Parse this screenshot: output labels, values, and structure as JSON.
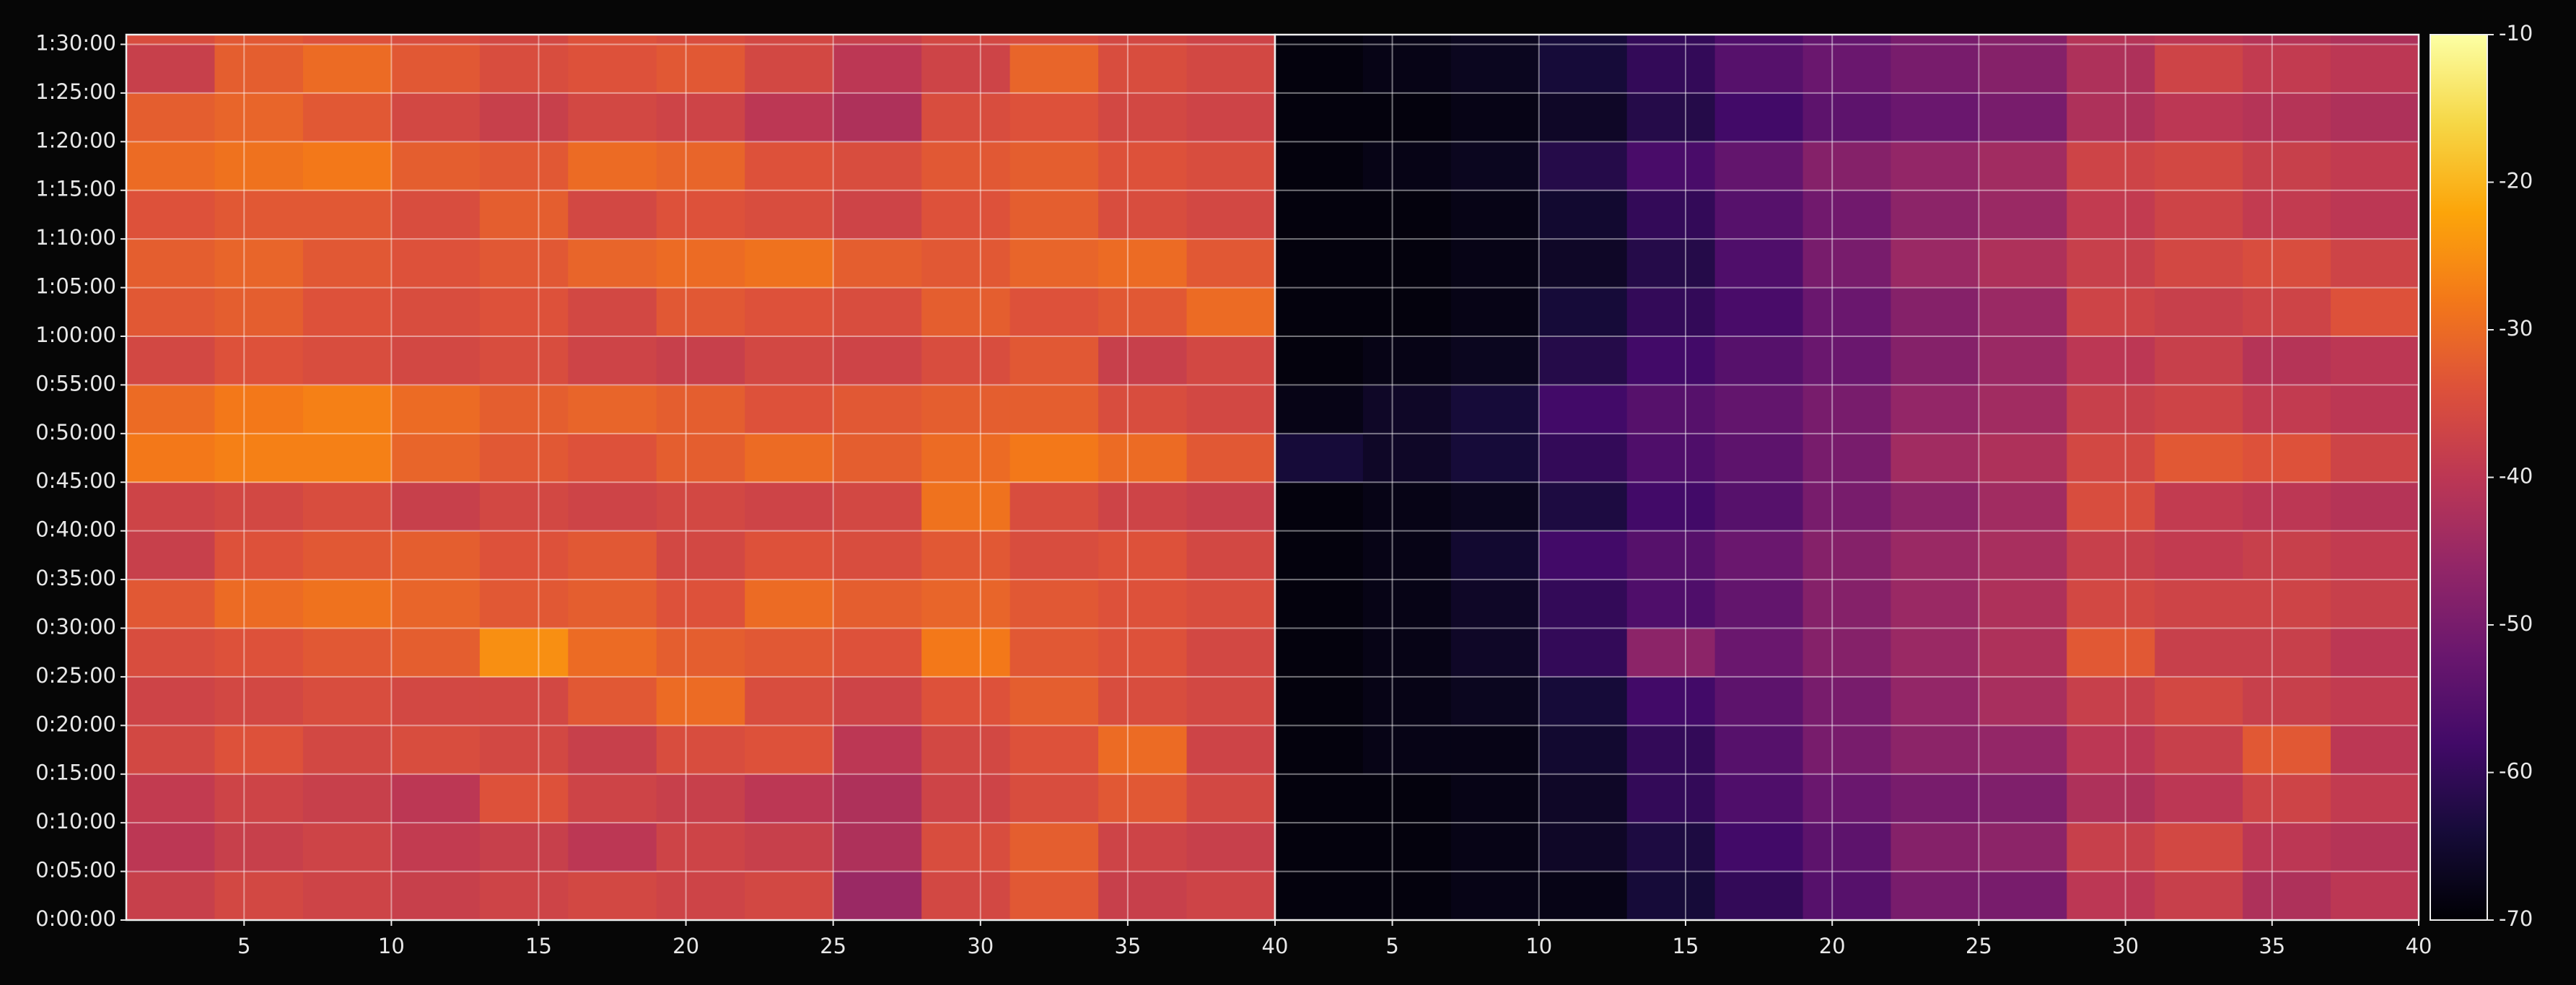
{
  "chart_data": [
    {
      "type": "heatmap",
      "colormap": "inferno",
      "clim": [
        -70,
        -10
      ],
      "grid": true,
      "xbins": [
        1,
        4,
        7,
        10,
        13,
        16,
        19,
        22,
        25,
        28,
        31,
        34,
        37,
        40
      ],
      "ybins": [
        0,
        300,
        600,
        900,
        1200,
        1500,
        1800,
        2100,
        2400,
        2700,
        3000,
        3300,
        3600,
        3900,
        4200,
        4500,
        4800,
        5100,
        5400,
        5460
      ],
      "xlim": [
        1,
        40
      ],
      "xticks": [
        5,
        10,
        15,
        20,
        25,
        30,
        35,
        40
      ],
      "ylim": [
        0,
        5460
      ],
      "yticks": [
        {
          "value": 0,
          "label": "0:00:00"
        },
        {
          "value": 300,
          "label": "0:05:00"
        },
        {
          "value": 600,
          "label": "0:10:00"
        },
        {
          "value": 900,
          "label": "0:15:00"
        },
        {
          "value": 1200,
          "label": "0:20:00"
        },
        {
          "value": 1500,
          "label": "0:25:00"
        },
        {
          "value": 1800,
          "label": "0:30:00"
        },
        {
          "value": 2100,
          "label": "0:35:00"
        },
        {
          "value": 2400,
          "label": "0:40:00"
        },
        {
          "value": 2700,
          "label": "0:45:00"
        },
        {
          "value": 3000,
          "label": "0:50:00"
        },
        {
          "value": 3300,
          "label": "0:55:00"
        },
        {
          "value": 3600,
          "label": "1:00:00"
        },
        {
          "value": 3900,
          "label": "1:05:00"
        },
        {
          "value": 4200,
          "label": "1:10:00"
        },
        {
          "value": 4500,
          "label": "1:15:00"
        },
        {
          "value": 4800,
          "label": "1:20:00"
        },
        {
          "value": 5100,
          "label": "1:25:00"
        },
        {
          "value": 5400,
          "label": "1:30:00"
        }
      ],
      "values": [
        [
          -38,
          -36,
          -37,
          -38,
          -37,
          -36,
          -37,
          -36,
          -45,
          -36,
          -33,
          -38,
          -37
        ],
        [
          -40,
          -38,
          -37,
          -39,
          -38,
          -40,
          -37,
          -38,
          -42,
          -35,
          -32,
          -37,
          -38
        ],
        [
          -39,
          -37,
          -38,
          -40,
          -34,
          -37,
          -38,
          -40,
          -42,
          -37,
          -35,
          -33,
          -36
        ],
        [
          -36,
          -34,
          -36,
          -35,
          -36,
          -38,
          -35,
          -34,
          -40,
          -36,
          -34,
          -30,
          -37
        ],
        [
          -37,
          -36,
          -35,
          -36,
          -36,
          -33,
          -30,
          -35,
          -37,
          -34,
          -32,
          -35,
          -36
        ],
        [
          -35,
          -34,
          -33,
          -32,
          -25,
          -30,
          -32,
          -33,
          -34,
          -28,
          -33,
          -34,
          -36
        ],
        [
          -33,
          -30,
          -29,
          -31,
          -33,
          -32,
          -34,
          -30,
          -32,
          -31,
          -33,
          -34,
          -35
        ],
        [
          -38,
          -34,
          -33,
          -32,
          -34,
          -33,
          -36,
          -34,
          -35,
          -33,
          -35,
          -34,
          -36
        ],
        [
          -37,
          -36,
          -35,
          -38,
          -36,
          -37,
          -36,
          -37,
          -36,
          -29,
          -35,
          -37,
          -38
        ],
        [
          -28,
          -27,
          -27,
          -31,
          -33,
          -34,
          -32,
          -30,
          -32,
          -30,
          -28,
          -30,
          -33
        ],
        [
          -30,
          -28,
          -27,
          -30,
          -32,
          -31,
          -32,
          -34,
          -33,
          -32,
          -32,
          -35,
          -36
        ],
        [
          -36,
          -34,
          -35,
          -36,
          -35,
          -37,
          -38,
          -36,
          -37,
          -35,
          -33,
          -38,
          -36
        ],
        [
          -33,
          -32,
          -34,
          -35,
          -34,
          -36,
          -33,
          -34,
          -35,
          -32,
          -34,
          -33,
          -30
        ],
        [
          -32,
          -31,
          -33,
          -34,
          -33,
          -31,
          -30,
          -29,
          -32,
          -33,
          -31,
          -30,
          -33
        ],
        [
          -34,
          -33,
          -33,
          -35,
          -32,
          -36,
          -34,
          -35,
          -37,
          -34,
          -32,
          -35,
          -36
        ],
        [
          -30,
          -29,
          -28,
          -32,
          -33,
          -30,
          -31,
          -34,
          -35,
          -33,
          -32,
          -34,
          -35
        ],
        [
          -32,
          -31,
          -33,
          -36,
          -38,
          -36,
          -37,
          -40,
          -42,
          -35,
          -34,
          -36,
          -37
        ],
        [
          -38,
          -32,
          -30,
          -33,
          -35,
          -34,
          -33,
          -36,
          -40,
          -37,
          -31,
          -35,
          -36
        ],
        [
          -35,
          -33,
          -34,
          -35,
          -36,
          -34,
          -35,
          -36,
          -38,
          -36,
          -35,
          -36,
          -37
        ]
      ]
    },
    {
      "type": "heatmap",
      "colormap": "inferno",
      "clim": [
        -70,
        -10
      ],
      "grid": true,
      "xbins": [
        1,
        4,
        7,
        10,
        13,
        16,
        19,
        22,
        25,
        28,
        31,
        34,
        37,
        40
      ],
      "ybins": [
        0,
        300,
        600,
        900,
        1200,
        1500,
        1800,
        2100,
        2400,
        2700,
        3000,
        3300,
        3600,
        3900,
        4200,
        4500,
        4800,
        5100,
        5400,
        5460
      ],
      "xlim": [
        1,
        40
      ],
      "xticks": [
        5,
        10,
        15,
        20,
        25,
        30,
        35,
        40
      ],
      "ylim": [
        0,
        5460
      ],
      "values": [
        [
          -69,
          -69,
          -68,
          -68,
          -64,
          -60,
          -55,
          -50,
          -50,
          -40,
          -38,
          -42,
          -40
        ],
        [
          -69,
          -69,
          -68,
          -66,
          -63,
          -58,
          -54,
          -48,
          -47,
          -38,
          -36,
          -40,
          -41
        ],
        [
          -69,
          -69,
          -68,
          -66,
          -60,
          -56,
          -52,
          -50,
          -49,
          -42,
          -40,
          -37,
          -39
        ],
        [
          -69,
          -68,
          -68,
          -65,
          -60,
          -55,
          -50,
          -47,
          -46,
          -40,
          -38,
          -33,
          -40
        ],
        [
          -69,
          -68,
          -67,
          -64,
          -58,
          -54,
          -50,
          -46,
          -43,
          -38,
          -36,
          -38,
          -39
        ],
        [
          -69,
          -68,
          -66,
          -60,
          -47,
          -52,
          -48,
          -45,
          -42,
          -33,
          -38,
          -38,
          -40
        ],
        [
          -69,
          -68,
          -66,
          -60,
          -56,
          -53,
          -48,
          -45,
          -42,
          -36,
          -37,
          -37,
          -38
        ],
        [
          -69,
          -68,
          -65,
          -58,
          -55,
          -52,
          -48,
          -45,
          -43,
          -38,
          -39,
          -38,
          -39
        ],
        [
          -69,
          -68,
          -67,
          -63,
          -58,
          -55,
          -50,
          -47,
          -44,
          -35,
          -39,
          -40,
          -41
        ],
        [
          -64,
          -66,
          -64,
          -60,
          -56,
          -54,
          -50,
          -44,
          -42,
          -36,
          -33,
          -34,
          -37
        ],
        [
          -68,
          -66,
          -64,
          -58,
          -55,
          -53,
          -50,
          -46,
          -44,
          -38,
          -37,
          -39,
          -40
        ],
        [
          -69,
          -68,
          -67,
          -62,
          -58,
          -55,
          -52,
          -48,
          -45,
          -40,
          -38,
          -41,
          -40
        ],
        [
          -69,
          -69,
          -68,
          -64,
          -60,
          -57,
          -52,
          -48,
          -45,
          -37,
          -38,
          -37,
          -34
        ],
        [
          -69,
          -69,
          -68,
          -66,
          -62,
          -56,
          -50,
          -45,
          -42,
          -38,
          -36,
          -35,
          -37
        ],
        [
          -69,
          -69,
          -68,
          -65,
          -60,
          -55,
          -51,
          -47,
          -45,
          -39,
          -37,
          -39,
          -40
        ],
        [
          -69,
          -68,
          -67,
          -62,
          -57,
          -53,
          -48,
          -46,
          -44,
          -37,
          -36,
          -38,
          -39
        ],
        [
          -69,
          -69,
          -68,
          -66,
          -62,
          -58,
          -54,
          -52,
          -50,
          -42,
          -40,
          -41,
          -42
        ],
        [
          -69,
          -68,
          -67,
          -64,
          -60,
          -55,
          -52,
          -50,
          -48,
          -42,
          -37,
          -39,
          -40
        ],
        [
          -69,
          -68,
          -67,
          -64,
          -60,
          -56,
          -53,
          -50,
          -48,
          -41,
          -40,
          -41,
          -42
        ]
      ],
      "colorbar": {
        "lim": [
          -70,
          -10
        ],
        "ticks": [
          -70,
          -60,
          -50,
          -40,
          -30,
          -20,
          -10
        ]
      }
    }
  ]
}
